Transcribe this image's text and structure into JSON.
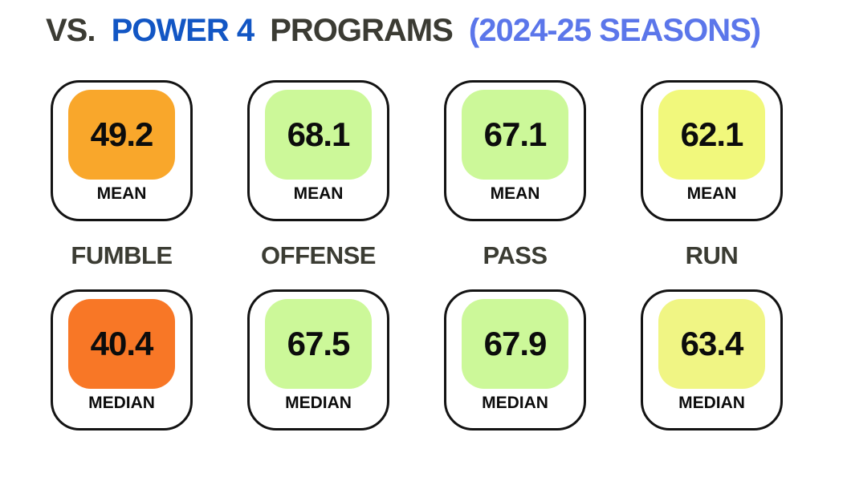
{
  "title": {
    "vs": "VS.",
    "power4": "POWER 4",
    "programs": "PROGRAMS",
    "seasons": "(2024-25 SEASONS)",
    "vs_color": "#3b3b33",
    "power4_color": "#1256c4",
    "programs_color": "#3b3b33",
    "seasons_color": "#5b76ea"
  },
  "stats": {
    "mean_label": "MEAN",
    "median_label": "MEDIAN",
    "columns": [
      {
        "category": "FUMBLE",
        "mean_value": "49.2",
        "mean_color": "#f9a72b",
        "median_value": "40.4",
        "median_color": "#f87726"
      },
      {
        "category": "OFFENSE",
        "mean_value": "68.1",
        "mean_color": "#ccf899",
        "median_value": "67.5",
        "median_color": "#ccf899"
      },
      {
        "category": "PASS",
        "mean_value": "67.1",
        "mean_color": "#ccf899",
        "median_value": "67.9",
        "median_color": "#ccf899"
      },
      {
        "category": "RUN",
        "mean_value": "62.1",
        "mean_color": "#f1f87c",
        "median_value": "63.4",
        "median_color": "#f0f584"
      }
    ]
  },
  "chart_data": {
    "type": "table",
    "title": "VS. POWER 4 PROGRAMS (2024-25 SEASONS)",
    "categories": [
      "FUMBLE",
      "OFFENSE",
      "PASS",
      "RUN"
    ],
    "series": [
      {
        "name": "MEAN",
        "values": [
          49.2,
          68.1,
          67.1,
          62.1
        ]
      },
      {
        "name": "MEDIAN",
        "values": [
          40.4,
          67.5,
          67.9,
          63.4
        ]
      }
    ],
    "value_color_scale": "low values shown orange, high values shown light green / yellow-green",
    "legend_position": "none",
    "grid": false
  }
}
